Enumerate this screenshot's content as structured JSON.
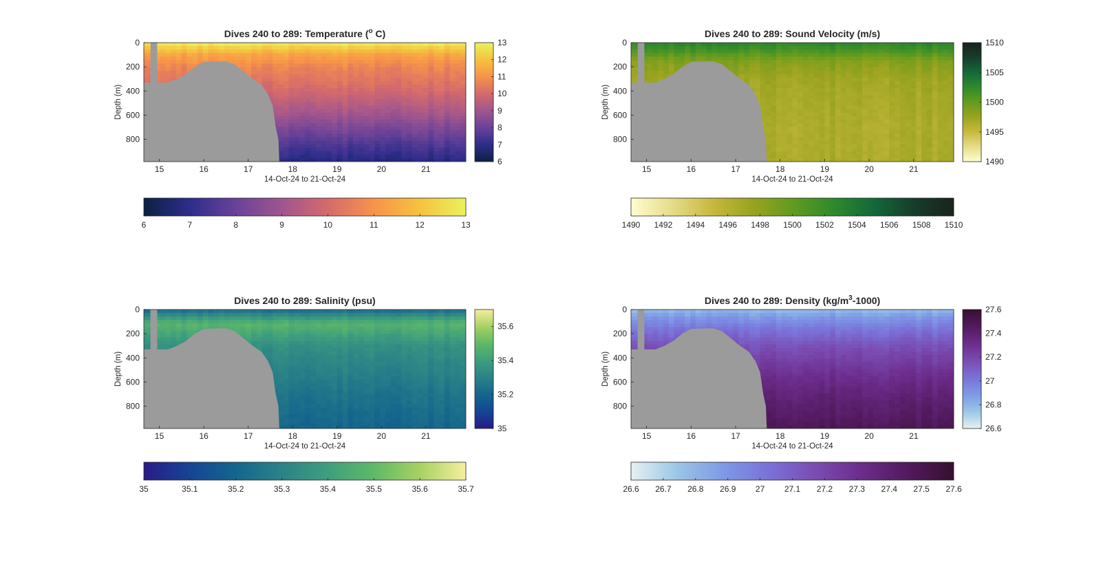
{
  "chart_data": [
    {
      "type": "heatmap",
      "title": "Dives 240 to 289: Temperature (",
      "title_sup": "o",
      "title_end": " C)",
      "xlabel": "14-Oct-24 to 21-Oct-24",
      "ylabel": "Depth (m)",
      "x_ticks": [
        "15",
        "16",
        "17",
        "18",
        "19",
        "20",
        "21"
      ],
      "y_ticks": [
        "0",
        "200",
        "400",
        "600",
        "800"
      ],
      "xlim": [
        14.65,
        21.9
      ],
      "ylim": [
        985,
        0
      ],
      "clim": [
        6,
        13
      ],
      "colormap": "thermal",
      "colormap_stops": [
        "#0b2140",
        "#2e2d8c",
        "#6a4298",
        "#a0558f",
        "#d56a6c",
        "#f7934a",
        "#f6c23f",
        "#e9f25c"
      ],
      "right_colorbar_ticks": [
        "6",
        "7",
        "8",
        "9",
        "10",
        "11",
        "12",
        "13"
      ],
      "bottom_colorbar_ticks": [
        "6",
        "7",
        "8",
        "9",
        "10",
        "11",
        "12",
        "13"
      ],
      "profile": {
        "depth": [
          0,
          100,
          200,
          400,
          600,
          800,
          985
        ],
        "values": [
          12.9,
          11.4,
          10.7,
          10.0,
          9.0,
          7.8,
          6.8
        ]
      },
      "mask_color": "#9b9b9b",
      "no_data_color": "#9b9b9b"
    },
    {
      "type": "heatmap",
      "title": "Dives 240 to 289: Sound Velocity (m/s)",
      "xlabel": "14-Oct-24 to 21-Oct-24",
      "ylabel": "Depth (m)",
      "x_ticks": [
        "15",
        "16",
        "17",
        "18",
        "19",
        "20",
        "21"
      ],
      "y_ticks": [
        "0",
        "200",
        "400",
        "600",
        "800"
      ],
      "xlim": [
        14.65,
        21.9
      ],
      "ylim": [
        985,
        0
      ],
      "clim": [
        1490,
        1510
      ],
      "colormap": "speed",
      "colormap_stops": [
        "#fffdce",
        "#e6dc8a",
        "#c8b93e",
        "#9aa31f",
        "#629b1f",
        "#2f8a2c",
        "#13693a",
        "#173d2c",
        "#18241b"
      ],
      "right_colorbar_ticks": [
        "1490",
        "1495",
        "1500",
        "1505",
        "1510"
      ],
      "bottom_colorbar_ticks": [
        "1490",
        "1492",
        "1494",
        "1496",
        "1498",
        "1500",
        "1502",
        "1504",
        "1506",
        "1508",
        "1510"
      ],
      "profile": {
        "depth": [
          0,
          60,
          150,
          300,
          500,
          700,
          985
        ],
        "values": [
          1502.8,
          1501.5,
          1498.6,
          1497.2,
          1496.8,
          1496.5,
          1496.6
        ]
      },
      "mask_color": "#9b9b9b",
      "no_data_color": "#9b9b9b"
    },
    {
      "type": "heatmap",
      "title": "Dives 240 to 289: Salinity (psu)",
      "xlabel": "14-Oct-24 to 21-Oct-24",
      "ylabel": "Depth (m)",
      "x_ticks": [
        "15",
        "16",
        "17",
        "18",
        "19",
        "20",
        "21"
      ],
      "y_ticks": [
        "0",
        "200",
        "400",
        "600",
        "800"
      ],
      "xlim": [
        14.65,
        21.9
      ],
      "ylim": [
        985,
        0
      ],
      "clim": [
        35,
        35.7
      ],
      "colormap": "haline",
      "colormap_stops": [
        "#2a1a88",
        "#154594",
        "#14668d",
        "#2b8287",
        "#3f9e7e",
        "#5eb967",
        "#a7d163",
        "#f6ee9f"
      ],
      "right_colorbar_ticks": [
        "35",
        "35.2",
        "35.4",
        "35.6"
      ],
      "bottom_colorbar_ticks": [
        "35",
        "35.1",
        "35.2",
        "35.3",
        "35.4",
        "35.5",
        "35.6",
        "35.7"
      ],
      "profile": {
        "depth": [
          0,
          60,
          120,
          300,
          500,
          700,
          985
        ],
        "values": [
          35.22,
          35.36,
          35.48,
          35.35,
          35.3,
          35.25,
          35.2
        ]
      },
      "mask_color": "#9b9b9b",
      "no_data_color": "#9b9b9b"
    },
    {
      "type": "heatmap",
      "title": "Dives 240 to 289: Density (kg/m",
      "title_sup": "3",
      "title_end": "-1000)",
      "xlabel": "14-Oct-24 to 21-Oct-24",
      "ylabel": "Depth (m)",
      "x_ticks": [
        "15",
        "16",
        "17",
        "18",
        "19",
        "20",
        "21"
      ],
      "y_ticks": [
        "0",
        "200",
        "400",
        "600",
        "800"
      ],
      "xlim": [
        14.65,
        21.9
      ],
      "ylim": [
        985,
        0
      ],
      "clim": [
        26.6,
        27.6
      ],
      "colormap": "dense",
      "colormap_stops": [
        "#e6f1f1",
        "#9bc6e6",
        "#7e99e6",
        "#7a71d8",
        "#7a4cb2",
        "#6c2c8c",
        "#521a5e",
        "#36102f"
      ],
      "right_colorbar_ticks": [
        "26.6",
        "26.8",
        "27",
        "27.2",
        "27.4",
        "27.6"
      ],
      "bottom_colorbar_ticks": [
        "26.6",
        "26.7",
        "26.8",
        "26.9",
        "27",
        "27.1",
        "27.2",
        "27.3",
        "27.4",
        "27.5",
        "27.6"
      ],
      "profile": {
        "depth": [
          0,
          60,
          150,
          300,
          500,
          700,
          985
        ],
        "values": [
          26.78,
          26.88,
          27.0,
          27.15,
          27.28,
          27.38,
          27.48
        ]
      },
      "mask_color": "#9b9b9b",
      "no_data_color": "#9b9b9b"
    }
  ]
}
